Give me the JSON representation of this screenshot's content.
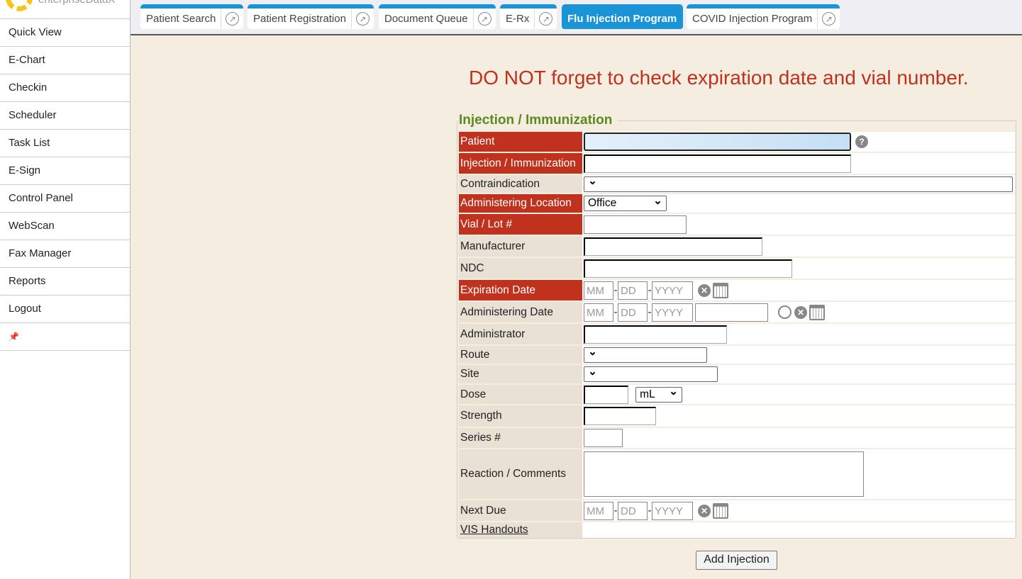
{
  "sidebar": {
    "brand": "enterpriseDataX",
    "items": [
      "Quick View",
      "E-Chart",
      "Checkin",
      "Scheduler",
      "Task List",
      "E-Sign",
      "Control Panel",
      "WebScan",
      "Fax Manager",
      "Reports",
      "Logout"
    ]
  },
  "tabs": [
    {
      "label": "Patient Search"
    },
    {
      "label": "Patient Registration"
    },
    {
      "label": "Document Queue"
    },
    {
      "label": "E-Rx"
    },
    {
      "label": "Flu Injection Program",
      "active": true
    },
    {
      "label": "COVID Injection Program"
    }
  ],
  "warning": "DO NOT forget to check expiration date and vial number.",
  "form": {
    "legend": "Injection / Immunization",
    "labels": {
      "patient": "Patient",
      "injection": "Injection / Immunization",
      "contra": "Contraindication",
      "location": "Administering Location",
      "vial": "Vial / Lot #",
      "manufacturer": "Manufacturer",
      "ndc": "NDC",
      "expiration": "Expiration Date",
      "adm_date": "Administering Date",
      "administrator": "Administrator",
      "route": "Route",
      "site": "Site",
      "dose": "Dose",
      "strength": "Strength",
      "series": "Series #",
      "reaction": "Reaction / Comments",
      "next_due": "Next Due",
      "vis": "VIS Handouts"
    },
    "required": [
      "patient",
      "injection",
      "location",
      "vial",
      "expiration"
    ],
    "location_value": "Office",
    "dose_unit": "mL",
    "date_placeholders": {
      "mm": "MM",
      "dd": "DD",
      "yyyy": "YYYY"
    },
    "submit": "Add Injection"
  },
  "colors": {
    "required_bg": "#c0311e",
    "tab_accent": "#1a94d6",
    "legend": "#5b8a1e",
    "warning": "#c0311e"
  }
}
